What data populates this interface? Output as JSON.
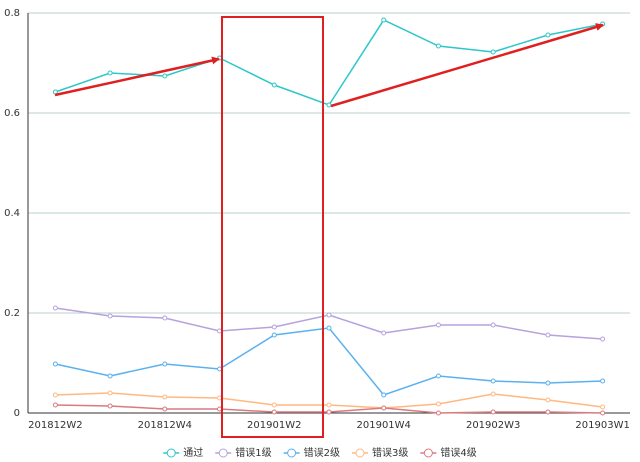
{
  "chart_data": {
    "type": "line",
    "categories": [
      "201812W2",
      null,
      "201812W4",
      null,
      "201901W2",
      null,
      "201901W4",
      null,
      "201902W3",
      null,
      "201903W1"
    ],
    "series": [
      {
        "name": "通过",
        "color": "#2ec7c9",
        "values": [
          0.642,
          0.68,
          0.674,
          0.71,
          0.656,
          0.616,
          0.786,
          0.734,
          0.722,
          0.756,
          0.778
        ]
      },
      {
        "name": "错误1级",
        "color": "#b6a2de",
        "values": [
          0.21,
          0.194,
          0.19,
          0.164,
          0.172,
          0.196,
          0.16,
          0.176,
          0.176,
          0.156,
          0.148
        ]
      },
      {
        "name": "错误2级",
        "color": "#5ab1ef",
        "values": [
          0.098,
          0.074,
          0.098,
          0.088,
          0.156,
          0.17,
          0.036,
          0.074,
          0.064,
          0.06,
          0.064
        ]
      },
      {
        "name": "错误3级",
        "color": "#ffb980",
        "values": [
          0.036,
          0.04,
          0.032,
          0.03,
          0.016,
          0.016,
          0.01,
          0.018,
          0.038,
          0.026,
          0.012
        ]
      },
      {
        "name": "错误4级",
        "color": "#d87a80",
        "values": [
          0.016,
          0.014,
          0.008,
          0.008,
          0.002,
          0.002,
          0.01,
          0,
          0.002,
          0.002,
          0
        ]
      }
    ],
    "ylim": [
      0,
      0.8
    ],
    "yticks": [
      0,
      0.2,
      0.4,
      0.6,
      0.8
    ],
    "grid": true,
    "legend": "bottom"
  }
}
